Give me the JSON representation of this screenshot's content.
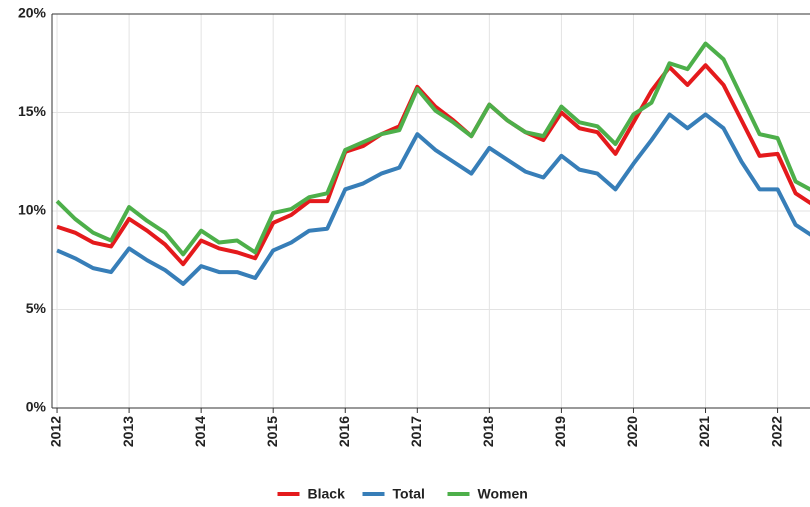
{
  "chart_data": {
    "type": "line",
    "x": [
      2012,
      2012.25,
      2012.5,
      2012.75,
      2013,
      2013.25,
      2013.5,
      2013.75,
      2014,
      2014.25,
      2014.5,
      2014.75,
      2015,
      2015.25,
      2015.5,
      2015.75,
      2016,
      2016.25,
      2016.5,
      2016.75,
      2017,
      2017.25,
      2017.5,
      2017.75,
      2018,
      2018.25,
      2018.5,
      2018.75,
      2019,
      2019.25,
      2019.5,
      2019.75,
      2020,
      2020.25,
      2020.5,
      2020.75,
      2021,
      2021.25,
      2021.5,
      2021.75,
      2022,
      2022.25,
      2022.5
    ],
    "series": [
      {
        "name": "Black",
        "color": "#e41a1c",
        "values": [
          9.2,
          8.9,
          8.4,
          8.2,
          9.6,
          9.0,
          8.3,
          7.3,
          8.5,
          8.1,
          7.9,
          7.6,
          9.4,
          9.8,
          10.5,
          10.5,
          13.0,
          13.3,
          13.9,
          14.3,
          16.3,
          15.3,
          14.6,
          13.8,
          15.4,
          14.6,
          14.0,
          13.6,
          15.0,
          14.2,
          14.0,
          12.9,
          14.5,
          16.1,
          17.3,
          16.4,
          17.4,
          16.4,
          14.6,
          12.8,
          12.9,
          10.9,
          10.3
        ]
      },
      {
        "name": "Total",
        "color": "#377eb8",
        "values": [
          8.0,
          7.6,
          7.1,
          6.9,
          8.1,
          7.5,
          7.0,
          6.3,
          7.2,
          6.9,
          6.9,
          6.6,
          8.0,
          8.4,
          9.0,
          9.1,
          11.1,
          11.4,
          11.9,
          12.2,
          13.9,
          13.1,
          12.5,
          11.9,
          13.2,
          12.6,
          12.0,
          11.7,
          12.8,
          12.1,
          11.9,
          11.1,
          12.4,
          13.6,
          14.9,
          14.2,
          14.9,
          14.2,
          12.5,
          11.1,
          11.1,
          9.3,
          8.7
        ]
      },
      {
        "name": "Women",
        "color": "#4daf4a",
        "values": [
          10.5,
          9.6,
          8.9,
          8.5,
          10.2,
          9.5,
          8.9,
          7.8,
          9.0,
          8.4,
          8.5,
          7.9,
          9.9,
          10.1,
          10.7,
          10.9,
          13.1,
          13.5,
          13.9,
          14.1,
          16.2,
          15.1,
          14.5,
          13.8,
          15.4,
          14.6,
          14.0,
          13.8,
          15.3,
          14.5,
          14.3,
          13.4,
          14.9,
          15.5,
          17.5,
          17.2,
          18.5,
          17.7,
          15.8,
          13.9,
          13.7,
          11.5,
          11.0
        ]
      }
    ],
    "xlim": [
      2011.93,
      2022.45
    ],
    "xticks": [
      2012,
      2013,
      2014,
      2015,
      2016,
      2017,
      2018,
      2019,
      2020,
      2021,
      2022
    ],
    "ylim": [
      0,
      20
    ],
    "yticks": [
      {
        "value": 0,
        "label": "0%"
      },
      {
        "value": 5,
        "label": "5%"
      },
      {
        "value": 10,
        "label": "10%"
      },
      {
        "value": 15,
        "label": "15%"
      },
      {
        "value": 20,
        "label": "20%"
      }
    ],
    "grid": true,
    "legend": "bottom"
  }
}
